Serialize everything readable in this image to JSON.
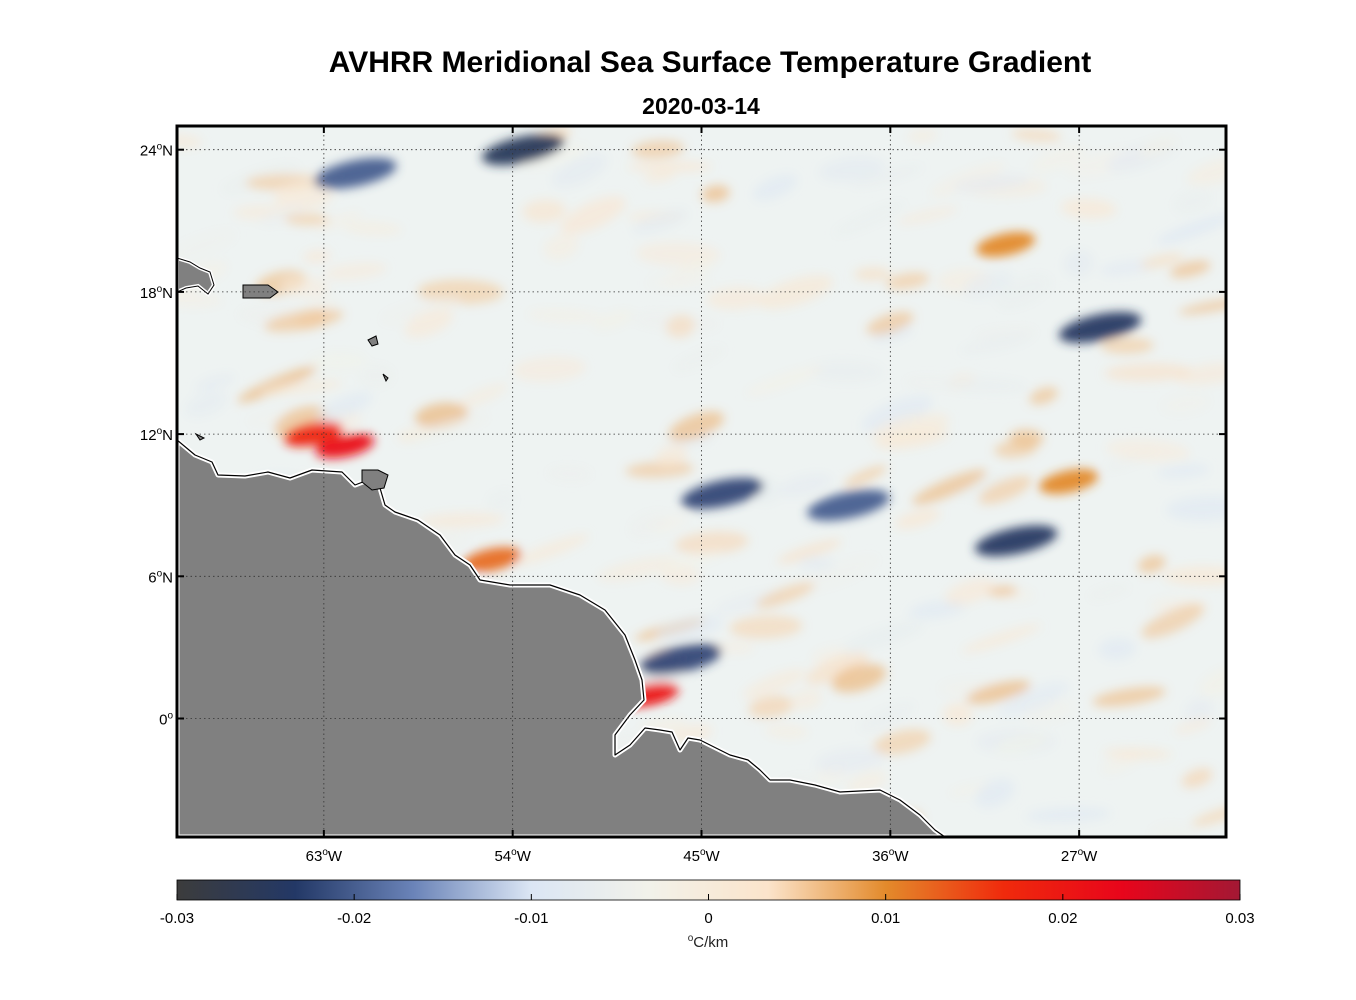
{
  "title": "AVHRR Meridional Sea Surface Temperature Gradient",
  "date": "2020-03-14",
  "map": {
    "lon_range": [
      -70,
      -20
    ],
    "lat_range": [
      -5,
      25
    ],
    "lon_ticks": [
      {
        "value": -63,
        "label": "63",
        "hemi": "W"
      },
      {
        "value": -54,
        "label": "54",
        "hemi": "W"
      },
      {
        "value": -45,
        "label": "45",
        "hemi": "W"
      },
      {
        "value": -36,
        "label": "36",
        "hemi": "W"
      },
      {
        "value": -27,
        "label": "27",
        "hemi": "W"
      }
    ],
    "lat_ticks": [
      {
        "value": 24,
        "label": "24",
        "hemi": "N"
      },
      {
        "value": 18,
        "label": "18",
        "hemi": "N"
      },
      {
        "value": 12,
        "label": "12",
        "hemi": "N"
      },
      {
        "value": 6,
        "label": "6",
        "hemi": "N"
      },
      {
        "value": 0,
        "label": "0",
        "hemi": ""
      }
    ],
    "land_color": "#808080",
    "grid_style": "dotted",
    "features": [
      {
        "type": "cold",
        "lon": -61.5,
        "lat": 23,
        "value": -0.02
      },
      {
        "type": "cold",
        "lon": -53.5,
        "lat": 24,
        "value": -0.025
      },
      {
        "type": "cold",
        "lon": -44,
        "lat": 9.5,
        "value": -0.022
      },
      {
        "type": "cold",
        "lon": -38,
        "lat": 9,
        "value": -0.02
      },
      {
        "type": "cold",
        "lon": -30,
        "lat": 7.5,
        "value": -0.024
      },
      {
        "type": "cold",
        "lon": -26,
        "lat": 16.5,
        "value": -0.024
      },
      {
        "type": "cold",
        "lon": -46,
        "lat": 2.5,
        "value": -0.022
      },
      {
        "type": "warm",
        "lon": -63.5,
        "lat": 12,
        "value": 0.018
      },
      {
        "type": "warm",
        "lon": -62,
        "lat": 11.5,
        "value": 0.022
      },
      {
        "type": "warm",
        "lon": -55,
        "lat": 6.7,
        "value": 0.012
      },
      {
        "type": "warm",
        "lon": -47.5,
        "lat": 1,
        "value": 0.02
      },
      {
        "type": "warm",
        "lon": -27.5,
        "lat": 10,
        "value": 0.01
      },
      {
        "type": "warm",
        "lon": -30.5,
        "lat": 20,
        "value": 0.01
      }
    ]
  },
  "colorbar": {
    "min": -0.03,
    "max": 0.03,
    "tick_labels": [
      "-0.03",
      "-0.02",
      "-0.01",
      "0",
      "0.01",
      "0.02",
      "0.03"
    ],
    "units_degree": "o",
    "units_text": "C/km",
    "colors": [
      "#3c3c3c",
      "#233866",
      "#6a83b8",
      "#dbe6f4",
      "#f2f2ea",
      "#fbe4cb",
      "#e38a2b",
      "#f02a0c",
      "#e8051b",
      "#a31834"
    ]
  }
}
